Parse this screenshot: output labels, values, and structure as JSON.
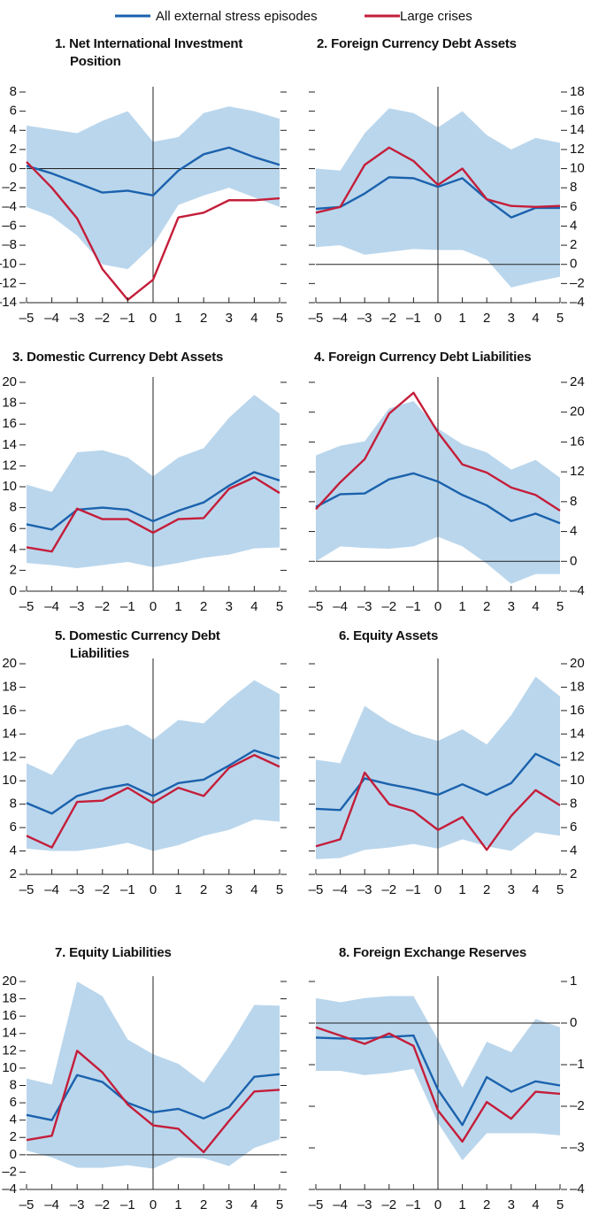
{
  "chart_data": [
    {
      "type": "line",
      "title": "1. Net International Investment Position",
      "x": [
        -5,
        -4,
        -3,
        -2,
        -1,
        0,
        1,
        2,
        3,
        4,
        5
      ],
      "xlim": [
        -5,
        5
      ],
      "xticks": [
        {
          "value": -5,
          "label": "–5"
        },
        {
          "value": -4,
          "label": "–4"
        },
        {
          "value": -3,
          "label": "–3"
        },
        {
          "value": -2,
          "label": "–2"
        },
        {
          "value": -1,
          "label": "–1"
        },
        0,
        1,
        2,
        3,
        4,
        5
      ],
      "ylim": [
        -14,
        8
      ],
      "yticks": [
        8,
        6,
        4,
        2,
        0,
        {
          "value": -2,
          "label": "–2"
        },
        {
          "value": -4,
          "label": "–4"
        },
        {
          "value": -6,
          "label": "–6"
        },
        {
          "value": -8,
          "label": "–8"
        },
        {
          "value": -10,
          "label": "–10"
        },
        {
          "value": -12,
          "label": "–12"
        },
        {
          "value": -14,
          "label": "–14"
        }
      ],
      "yaxis_side": "left",
      "band": {
        "color": "#bad6ec",
        "upper": [
          4.5,
          4.1,
          3.7,
          5,
          6,
          2.8,
          3.3,
          5.8,
          6.5,
          6,
          5.2
        ],
        "lower": [
          -4,
          -5,
          -7,
          -10,
          -10.5,
          -8,
          -3.8,
          -2.8,
          -2,
          -3,
          -4
        ]
      },
      "series": [
        {
          "name": "All external stress episodes",
          "color": "#1b62ad",
          "values": [
            0.3,
            -0.5,
            -1.5,
            -2.5,
            -2.3,
            -2.8,
            -0.2,
            1.5,
            2.2,
            1.2,
            0.4
          ]
        },
        {
          "name": "Large crises",
          "color": "#c41e3a",
          "values": [
            0.7,
            -2,
            -5.2,
            -10.5,
            -13.7,
            -11.6,
            -5.1,
            -4.6,
            -3.3,
            -3.3,
            -3.1
          ]
        }
      ]
    },
    {
      "type": "line",
      "title": "2. Foreign Currency Debt Assets",
      "x": [
        -5,
        -4,
        -3,
        -2,
        -1,
        0,
        1,
        2,
        3,
        4,
        5
      ],
      "xlim": [
        -5,
        5
      ],
      "xticks": [
        {
          "value": -5,
          "label": "–5"
        },
        {
          "value": -4,
          "label": "–4"
        },
        {
          "value": -3,
          "label": "–3"
        },
        {
          "value": -2,
          "label": "–2"
        },
        {
          "value": -1,
          "label": "–1"
        },
        0,
        1,
        2,
        3,
        4,
        5
      ],
      "ylim": [
        -4,
        18
      ],
      "yticks": [
        18,
        16,
        14,
        12,
        10,
        8,
        6,
        4,
        2,
        0,
        {
          "value": -2,
          "label": "–2"
        },
        {
          "value": -4,
          "label": "–4"
        }
      ],
      "yaxis_side": "right",
      "band": {
        "color": "#bad6ec",
        "upper": [
          10,
          9.8,
          13.7,
          16.3,
          15.8,
          14.3,
          16,
          13.5,
          12,
          13.2,
          12.7
        ],
        "lower": [
          1.8,
          2,
          1,
          1.3,
          1.6,
          1.5,
          1.5,
          0.5,
          -2.4,
          -1.8,
          -1.3
        ]
      },
      "series": [
        {
          "name": "All external stress episodes",
          "color": "#1b62ad",
          "values": [
            5.8,
            6,
            7.4,
            9.1,
            9,
            8.1,
            9,
            6.8,
            4.9,
            5.9,
            5.9
          ]
        },
        {
          "name": "Large crises",
          "color": "#c41e3a",
          "values": [
            5.4,
            6,
            10.4,
            12.2,
            10.8,
            8.3,
            10,
            6.8,
            6.1,
            6,
            6.1
          ]
        }
      ]
    },
    {
      "type": "line",
      "title": "3. Domestic Currency Debt Assets",
      "x": [
        -5,
        -4,
        -3,
        -2,
        -1,
        0,
        1,
        2,
        3,
        4,
        5
      ],
      "xlim": [
        -5,
        5
      ],
      "xticks": [
        {
          "value": -5,
          "label": "–5"
        },
        {
          "value": -4,
          "label": "–4"
        },
        {
          "value": -3,
          "label": "–3"
        },
        {
          "value": -2,
          "label": "–2"
        },
        {
          "value": -1,
          "label": "–1"
        },
        0,
        1,
        2,
        3,
        4,
        5
      ],
      "ylim": [
        0,
        20
      ],
      "yticks": [
        20,
        18,
        16,
        14,
        12,
        10,
        8,
        6,
        4,
        2,
        0
      ],
      "yaxis_side": "left",
      "band": {
        "color": "#bad6ec",
        "upper": [
          10.2,
          9.5,
          13.3,
          13.5,
          12.8,
          11,
          12.8,
          13.7,
          16.6,
          18.8,
          17
        ],
        "lower": [
          2.7,
          2.5,
          2.2,
          2.5,
          2.8,
          2.3,
          2.7,
          3.2,
          3.5,
          4.1,
          4.2
        ]
      },
      "series": [
        {
          "name": "All external stress episodes",
          "color": "#1b62ad",
          "values": [
            6.4,
            5.9,
            7.8,
            8,
            7.8,
            6.7,
            7.7,
            8.5,
            10.1,
            11.4,
            10.6
          ]
        },
        {
          "name": "Large crises",
          "color": "#c41e3a",
          "values": [
            4.2,
            3.8,
            7.9,
            6.9,
            6.9,
            5.6,
            6.9,
            7,
            9.8,
            10.9,
            9.4
          ]
        }
      ]
    },
    {
      "type": "line",
      "title": "4. Foreign Currency Debt Liabilities",
      "x": [
        -5,
        -4,
        -3,
        -2,
        -1,
        0,
        1,
        2,
        3,
        4,
        5
      ],
      "xlim": [
        -5,
        5
      ],
      "xticks": [
        {
          "value": -5,
          "label": "–5"
        },
        {
          "value": -4,
          "label": "–4"
        },
        {
          "value": -3,
          "label": "–3"
        },
        {
          "value": -2,
          "label": "–2"
        },
        {
          "value": -1,
          "label": "–1"
        },
        0,
        1,
        2,
        3,
        4,
        5
      ],
      "ylim": [
        -4,
        24
      ],
      "yticks": [
        24,
        20,
        16,
        12,
        8,
        4,
        0,
        {
          "value": -4,
          "label": "–4"
        }
      ],
      "yaxis_side": "right",
      "band": {
        "color": "#bad6ec",
        "upper": [
          14.2,
          15.5,
          16.1,
          20.5,
          21.5,
          17.8,
          15.7,
          14.6,
          12.3,
          13.6,
          11.2
        ],
        "lower": [
          0,
          2,
          1.8,
          1.7,
          2,
          3.3,
          2,
          -0.3,
          -3,
          -1.7,
          -1.7
        ]
      },
      "series": [
        {
          "name": "All external stress episodes",
          "color": "#1b62ad",
          "values": [
            7.3,
            9,
            9.1,
            11,
            11.8,
            10.7,
            8.9,
            7.5,
            5.4,
            6.4,
            5.1
          ]
        },
        {
          "name": "Large crises",
          "color": "#c41e3a",
          "values": [
            7,
            10.6,
            13.7,
            19.8,
            22.6,
            17.3,
            13,
            11.9,
            9.9,
            8.9,
            6.8
          ]
        }
      ]
    },
    {
      "type": "line",
      "title": "5. Domestic Currency Debt Liabilities",
      "x": [
        -5,
        -4,
        -3,
        -2,
        -1,
        0,
        1,
        2,
        3,
        4,
        5
      ],
      "xlim": [
        -5,
        5
      ],
      "xticks": [
        {
          "value": -5,
          "label": "–5"
        },
        {
          "value": -4,
          "label": "–4"
        },
        {
          "value": -3,
          "label": "–3"
        },
        {
          "value": -2,
          "label": "–2"
        },
        {
          "value": -1,
          "label": "–1"
        },
        0,
        1,
        2,
        3,
        4,
        5
      ],
      "ylim": [
        2,
        20
      ],
      "yticks": [
        20,
        18,
        16,
        14,
        12,
        10,
        8,
        6,
        4,
        2
      ],
      "yaxis_side": "left",
      "band": {
        "color": "#bad6ec",
        "upper": [
          11.5,
          10.5,
          13.5,
          14.3,
          14.8,
          13.5,
          15.2,
          14.9,
          16.9,
          18.6,
          17.4
        ],
        "lower": [
          4.2,
          4,
          4,
          4.3,
          4.7,
          4,
          4.5,
          5.3,
          5.8,
          6.7,
          6.5
        ]
      },
      "series": [
        {
          "name": "All external stress episodes",
          "color": "#1b62ad",
          "values": [
            8.1,
            7.2,
            8.7,
            9.3,
            9.7,
            8.7,
            9.8,
            10.1,
            11.3,
            12.6,
            11.9
          ]
        },
        {
          "name": "Large crises",
          "color": "#c41e3a",
          "values": [
            5.3,
            4.3,
            8.2,
            8.3,
            9.4,
            8.1,
            9.4,
            8.7,
            11.1,
            12.2,
            11.2
          ]
        }
      ]
    },
    {
      "type": "line",
      "title": "6. Equity Assets",
      "x": [
        -5,
        -4,
        -3,
        -2,
        -1,
        0,
        1,
        2,
        3,
        4,
        5
      ],
      "xlim": [
        -5,
        5
      ],
      "xticks": [
        {
          "value": -5,
          "label": "–5"
        },
        {
          "value": -4,
          "label": "–4"
        },
        {
          "value": -3,
          "label": "–3"
        },
        {
          "value": -2,
          "label": "–2"
        },
        {
          "value": -1,
          "label": "–1"
        },
        0,
        1,
        2,
        3,
        4,
        5
      ],
      "ylim": [
        2,
        20
      ],
      "yticks": [
        20,
        18,
        16,
        14,
        12,
        10,
        8,
        6,
        4,
        2
      ],
      "yaxis_side": "right",
      "band": {
        "color": "#bad6ec",
        "upper": [
          11.8,
          11.5,
          16.4,
          15,
          14,
          13.4,
          14.4,
          13.1,
          15.6,
          18.9,
          17.2
        ],
        "lower": [
          3.3,
          3.4,
          4.1,
          4.3,
          4.6,
          4.2,
          5,
          4.4,
          4,
          5.6,
          5.3
        ]
      },
      "series": [
        {
          "name": "All external stress episodes",
          "color": "#1b62ad",
          "values": [
            7.6,
            7.5,
            10.2,
            9.7,
            9.3,
            8.8,
            9.7,
            8.8,
            9.8,
            12.3,
            11.3
          ]
        },
        {
          "name": "Large crises",
          "color": "#c41e3a",
          "values": [
            4.4,
            5,
            10.7,
            8,
            7.4,
            5.8,
            6.9,
            4.1,
            7,
            9.2,
            7.9
          ]
        }
      ]
    },
    {
      "type": "line",
      "title": "7. Equity Liabilities",
      "x": [
        -5,
        -4,
        -3,
        -2,
        -1,
        0,
        1,
        2,
        3,
        4,
        5
      ],
      "xlim": [
        -5,
        5
      ],
      "xticks": [
        {
          "value": -5,
          "label": "–5"
        },
        {
          "value": -4,
          "label": "–4"
        },
        {
          "value": -3,
          "label": "–3"
        },
        {
          "value": -2,
          "label": "–2"
        },
        {
          "value": -1,
          "label": "–1"
        },
        0,
        1,
        2,
        3,
        4,
        5
      ],
      "ylim": [
        -4,
        20
      ],
      "yticks": [
        20,
        18,
        16,
        14,
        12,
        10,
        8,
        6,
        4,
        2,
        0,
        {
          "value": -2,
          "label": "–2"
        },
        {
          "value": -4,
          "label": "–4"
        }
      ],
      "yaxis_side": "left",
      "band": {
        "color": "#bad6ec",
        "upper": [
          8.8,
          8.1,
          20,
          18.3,
          13.3,
          11.6,
          10.5,
          8.3,
          12.5,
          17.3,
          17.2
        ],
        "lower": [
          0.5,
          -0.3,
          -1.5,
          -1.5,
          -1.2,
          -1.6,
          -0.3,
          -0.4,
          -1.3,
          0.8,
          1.8
        ]
      },
      "series": [
        {
          "name": "All external stress episodes",
          "color": "#1b62ad",
          "values": [
            4.6,
            4,
            9.2,
            8.4,
            6,
            4.9,
            5.3,
            4.2,
            5.5,
            9,
            9.3
          ]
        },
        {
          "name": "Large crises",
          "color": "#c41e3a",
          "values": [
            1.7,
            2.2,
            12,
            9.5,
            5.8,
            3.4,
            3,
            0.3,
            3.9,
            7.3,
            7.5
          ]
        }
      ]
    },
    {
      "type": "line",
      "title": "8. Foreign Exchange Reserves",
      "x": [
        -5,
        -4,
        -3,
        -2,
        -1,
        0,
        1,
        2,
        3,
        4,
        5
      ],
      "xlim": [
        -5,
        5
      ],
      "xticks": [
        {
          "value": -5,
          "label": "–5"
        },
        {
          "value": -4,
          "label": "–4"
        },
        {
          "value": -3,
          "label": "–3"
        },
        {
          "value": -2,
          "label": "–2"
        },
        {
          "value": -1,
          "label": "–1"
        },
        0,
        1,
        2,
        3,
        4,
        5
      ],
      "ylim": [
        -4,
        1
      ],
      "yticks": [
        1,
        0,
        {
          "value": -1,
          "label": "–1"
        },
        {
          "value": -2,
          "label": "–2"
        },
        {
          "value": -3,
          "label": "–3"
        },
        {
          "value": -4,
          "label": "–4"
        }
      ],
      "yaxis_side": "right",
      "band": {
        "color": "#bad6ec",
        "upper": [
          0.6,
          0.5,
          0.6,
          0.65,
          0.65,
          -0.4,
          -1.55,
          -0.45,
          -0.7,
          0.1,
          -0.1
        ],
        "lower": [
          -1.15,
          -1.15,
          -1.25,
          -1.2,
          -1.1,
          -2.4,
          -3.3,
          -2.65,
          -2.65,
          -2.65,
          -2.7
        ]
      },
      "series": [
        {
          "name": "All external stress episodes",
          "color": "#1b62ad",
          "values": [
            -0.35,
            -0.37,
            -0.37,
            -0.33,
            -0.3,
            -1.6,
            -2.45,
            -1.3,
            -1.65,
            -1.4,
            -1.5
          ]
        },
        {
          "name": "Large crises",
          "color": "#c41e3a",
          "values": [
            -0.1,
            -0.3,
            -0.5,
            -0.25,
            -0.55,
            -2.1,
            -2.85,
            -1.9,
            -2.3,
            -1.65,
            -1.7
          ]
        }
      ]
    }
  ]
}
